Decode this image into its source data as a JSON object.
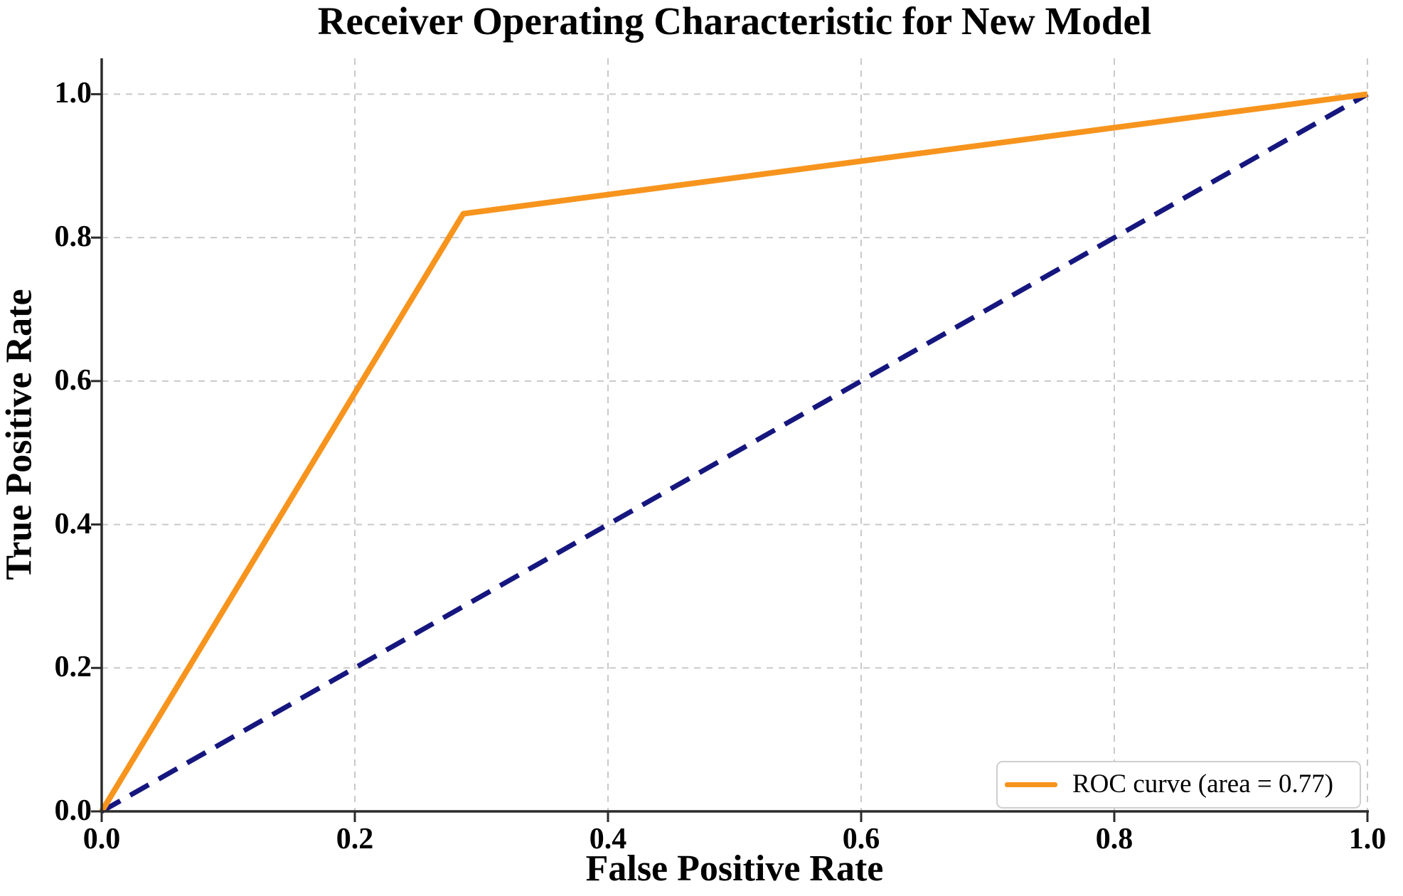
{
  "chart_data": {
    "type": "line",
    "title": "Receiver Operating Characteristic for New Model",
    "xlabel": "False Positive Rate",
    "ylabel": "True Positive Rate",
    "xlim": [
      0.0,
      1.0
    ],
    "ylim": [
      0.0,
      1.05
    ],
    "x_ticks": [
      0.0,
      0.2,
      0.4,
      0.6,
      0.8,
      1.0
    ],
    "y_ticks": [
      0.0,
      0.2,
      0.4,
      0.6,
      0.8,
      1.0
    ],
    "tick_decimals": 1,
    "grid": true,
    "auc": 0.77,
    "series": [
      {
        "name": "chance-diagonal",
        "color": "#16167F",
        "linestyle": "dashed",
        "linewidth": 7,
        "points": [
          [
            0.0,
            0.0
          ],
          [
            1.0,
            1.0
          ]
        ]
      },
      {
        "name": "ROC curve",
        "color": "#F7941D",
        "linestyle": "solid",
        "linewidth": 8,
        "points": [
          [
            0.0,
            0.0
          ],
          [
            0.2857,
            0.8333
          ],
          [
            1.0,
            1.0
          ]
        ]
      }
    ],
    "legend": {
      "position": "lower right",
      "entries": [
        {
          "label": "ROC curve (area = 0.77)",
          "color": "#F7941D"
        }
      ]
    },
    "colors": {
      "grid": "#C9C9C9",
      "spine": "#2B2B2B",
      "text": "#000000",
      "legend_border": "#CFCFCF",
      "background": "#FFFFFF"
    }
  }
}
